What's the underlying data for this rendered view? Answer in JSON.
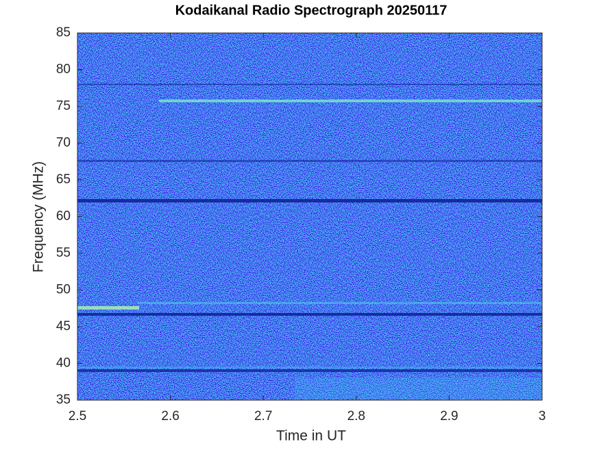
{
  "chart_data": {
    "type": "spectrogram",
    "title": "Kodaikanal Radio Spectrograph  20250117",
    "x_label": "Time in UT",
    "y_label": "Frequency (MHz)",
    "xlim": [
      2.5,
      3
    ],
    "xticks": [
      2.5,
      2.6,
      2.7,
      2.8,
      2.9,
      3
    ],
    "ylim": [
      35,
      85
    ],
    "yticks": [
      35,
      40,
      45,
      50,
      55,
      60,
      65,
      70,
      75,
      80,
      85
    ]
  }
}
